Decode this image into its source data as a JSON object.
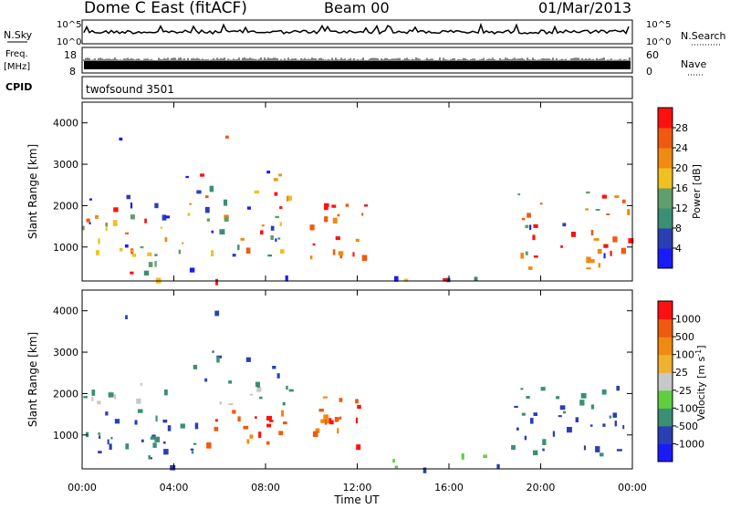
{
  "header": {
    "station": "Dome C East (fitACF)",
    "beam": "Beam 00",
    "date": "01/Mar/2013"
  },
  "panels": {
    "nsky": {
      "label": "N.Sky",
      "ticks_left": [
        "10^5",
        "10^0"
      ],
      "ticks_right": [
        "10^5",
        "10^0"
      ],
      "right_label": "N.Search"
    },
    "freq": {
      "label_line1": "Freq.",
      "label_line2": "[MHz]",
      "ticks_left": [
        "18",
        "8"
      ],
      "ticks_right": [
        "60",
        "0"
      ],
      "right_label": "Nave"
    },
    "cpid": {
      "label": "CPID",
      "text": "twofsound 3501"
    }
  },
  "colors": {
    "power": [
      "#1a1aff",
      "#2a3fb4",
      "#3b8f75",
      "#5f9f6a",
      "#f0c020",
      "#f08a10",
      "#f05a10",
      "#ff1010"
    ],
    "velocity": [
      "#ff1010",
      "#f05a10",
      "#f08a10",
      "#f0b030",
      "#c8c8c8",
      "#5fcf3f",
      "#3b8f75",
      "#2a3fb4",
      "#1a1aff"
    ]
  },
  "chart_data": [
    {
      "type": "heatmap",
      "title": "Power",
      "ylabel": "Slant Range [km]",
      "xlabel": "Time UT",
      "x_range_hours": [
        0,
        24
      ],
      "ylim_km": [
        180,
        4500
      ],
      "y_ticks": [
        1000,
        2000,
        3000,
        4000
      ],
      "x_ticks": [
        "00:00",
        "04:00",
        "08:00",
        "12:00",
        "16:00",
        "20:00",
        "00:00"
      ],
      "colorbar": {
        "label": "Power [dB]",
        "ticks": [
          "28",
          "24",
          "20",
          "16",
          "12",
          "8",
          "4"
        ],
        "range": [
          0,
          30
        ]
      }
    },
    {
      "type": "heatmap",
      "title": "Velocity",
      "ylabel": "Slant Range [km]",
      "xlabel": "Time UT",
      "x_range_hours": [
        0,
        24
      ],
      "ylim_km": [
        180,
        4500
      ],
      "y_ticks": [
        1000,
        2000,
        3000,
        4000
      ],
      "x_ticks": [
        "00:00",
        "04:00",
        "08:00",
        "12:00",
        "16:00",
        "20:00",
        "00:00"
      ],
      "colorbar": {
        "label": "Velocity [m s^-1]",
        "ticks": [
          "1000",
          "500",
          "100",
          "25",
          "-25",
          "-100",
          "-500",
          "-1000"
        ]
      }
    }
  ]
}
